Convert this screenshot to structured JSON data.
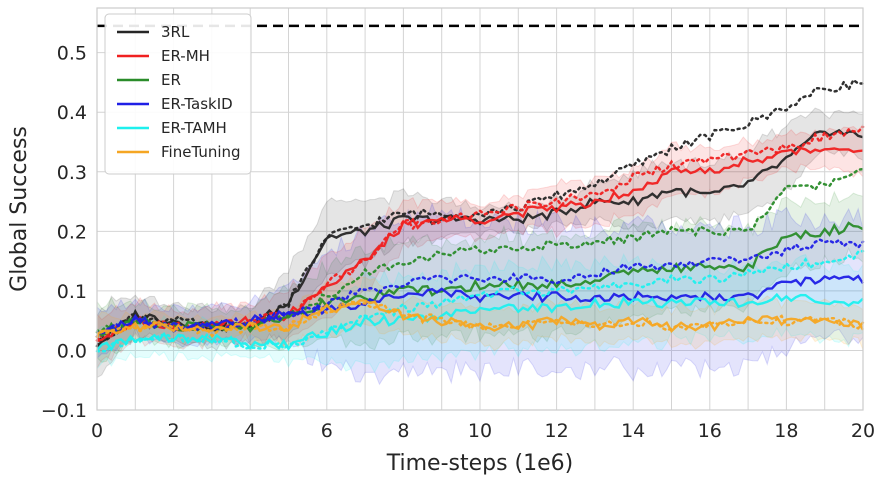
{
  "chart_data": {
    "type": "line",
    "xlabel": "Time-steps (1e6)",
    "ylabel": "Global Success",
    "xlim": [
      0,
      20
    ],
    "ylim": [
      -0.1,
      0.575
    ],
    "xticks": [
      "0",
      "2",
      "4",
      "6",
      "8",
      "10",
      "12",
      "14",
      "16",
      "18",
      "20"
    ],
    "yticks": [
      "−0.1",
      "0.0",
      "0.1",
      "0.2",
      "0.3",
      "0.4",
      "0.5"
    ],
    "grid": true,
    "legend_position": "top-left",
    "reference_line": {
      "y": 0.545,
      "style": "dashed",
      "color": "#000000"
    },
    "x": [
      0,
      1,
      2,
      3,
      4,
      5,
      6,
      7,
      8,
      9,
      10,
      11,
      12,
      13,
      14,
      15,
      16,
      17,
      18,
      19,
      20
    ],
    "series": [
      {
        "name": "3RL",
        "color": "#262626",
        "values": [
          0.01,
          0.06,
          0.05,
          0.04,
          0.04,
          0.08,
          0.19,
          0.2,
          0.22,
          0.22,
          0.22,
          0.22,
          0.23,
          0.25,
          0.25,
          0.27,
          0.26,
          0.28,
          0.32,
          0.37,
          0.36
        ],
        "dotted": [
          0.01,
          0.06,
          0.05,
          0.04,
          0.04,
          0.08,
          0.19,
          0.21,
          0.23,
          0.23,
          0.23,
          0.24,
          0.26,
          0.28,
          0.31,
          0.34,
          0.36,
          0.38,
          0.41,
          0.44,
          0.45
        ],
        "band": [
          0.06,
          0.03,
          0.03,
          0.03,
          0.03,
          0.06,
          0.06,
          0.05,
          0.04,
          0.03,
          0.02,
          0.02,
          0.02,
          0.03,
          0.05,
          0.05,
          0.05,
          0.05,
          0.06,
          0.03,
          0.04
        ]
      },
      {
        "name": "ER-MH",
        "color": "#f02020",
        "values": [
          0.02,
          0.05,
          0.04,
          0.04,
          0.05,
          0.06,
          0.11,
          0.15,
          0.21,
          0.22,
          0.22,
          0.23,
          0.24,
          0.25,
          0.27,
          0.3,
          0.3,
          0.32,
          0.33,
          0.34,
          0.34
        ],
        "dotted": [
          0.02,
          0.05,
          0.04,
          0.04,
          0.05,
          0.06,
          0.11,
          0.15,
          0.21,
          0.22,
          0.23,
          0.24,
          0.25,
          0.26,
          0.29,
          0.31,
          0.32,
          0.33,
          0.34,
          0.36,
          0.37
        ],
        "band": [
          0.04,
          0.03,
          0.03,
          0.03,
          0.03,
          0.04,
          0.05,
          0.05,
          0.04,
          0.03,
          0.03,
          0.03,
          0.04,
          0.04,
          0.04,
          0.04,
          0.04,
          0.03,
          0.03,
          0.03,
          0.04
        ]
      },
      {
        "name": "ER",
        "color": "#2a8c2a",
        "values": [
          0.03,
          0.05,
          0.04,
          0.04,
          0.04,
          0.06,
          0.08,
          0.09,
          0.1,
          0.1,
          0.11,
          0.11,
          0.11,
          0.12,
          0.13,
          0.14,
          0.14,
          0.14,
          0.19,
          0.2,
          0.21
        ],
        "dotted": [
          0.03,
          0.05,
          0.04,
          0.04,
          0.04,
          0.06,
          0.09,
          0.13,
          0.15,
          0.16,
          0.17,
          0.17,
          0.18,
          0.18,
          0.19,
          0.2,
          0.2,
          0.2,
          0.27,
          0.28,
          0.3
        ],
        "band": [
          0.05,
          0.03,
          0.03,
          0.03,
          0.03,
          0.05,
          0.06,
          0.08,
          0.08,
          0.08,
          0.08,
          0.08,
          0.08,
          0.08,
          0.08,
          0.07,
          0.07,
          0.06,
          0.06,
          0.05,
          0.05
        ]
      },
      {
        "name": "ER-TaskID",
        "color": "#1f1fe6",
        "values": [
          0.03,
          0.05,
          0.04,
          0.04,
          0.05,
          0.06,
          0.07,
          0.08,
          0.09,
          0.1,
          0.09,
          0.09,
          0.09,
          0.09,
          0.09,
          0.09,
          0.09,
          0.09,
          0.11,
          0.12,
          0.12
        ],
        "dotted": [
          0.03,
          0.05,
          0.04,
          0.04,
          0.05,
          0.06,
          0.08,
          0.1,
          0.11,
          0.12,
          0.12,
          0.12,
          0.12,
          0.13,
          0.14,
          0.14,
          0.15,
          0.15,
          0.17,
          0.18,
          0.18
        ],
        "band": [
          0.04,
          0.03,
          0.03,
          0.03,
          0.03,
          0.05,
          0.09,
          0.12,
          0.13,
          0.13,
          0.12,
          0.12,
          0.12,
          0.12,
          0.12,
          0.12,
          0.12,
          0.12,
          0.11,
          0.1,
          0.1
        ]
      },
      {
        "name": "ER-TAMH",
        "color": "#1ef0ee",
        "values": [
          0.0,
          0.02,
          0.02,
          0.02,
          0.01,
          0.01,
          0.03,
          0.05,
          0.05,
          0.06,
          0.07,
          0.07,
          0.07,
          0.08,
          0.08,
          0.08,
          0.08,
          0.08,
          0.09,
          0.08,
          0.08
        ],
        "dotted": [
          0.0,
          0.02,
          0.02,
          0.02,
          0.01,
          0.01,
          0.03,
          0.06,
          0.07,
          0.08,
          0.09,
          0.1,
          0.1,
          0.11,
          0.11,
          0.12,
          0.12,
          0.13,
          0.14,
          0.15,
          0.16
        ],
        "band": [
          0.03,
          0.03,
          0.03,
          0.03,
          0.02,
          0.03,
          0.05,
          0.07,
          0.07,
          0.07,
          0.07,
          0.07,
          0.07,
          0.07,
          0.07,
          0.06,
          0.06,
          0.06,
          0.06,
          0.06,
          0.06
        ]
      },
      {
        "name": "FineTuning",
        "color": "#f5a623",
        "values": [
          0.03,
          0.04,
          0.04,
          0.03,
          0.04,
          0.04,
          0.07,
          0.08,
          0.06,
          0.05,
          0.04,
          0.04,
          0.05,
          0.04,
          0.05,
          0.04,
          0.04,
          0.05,
          0.05,
          0.05,
          0.04
        ],
        "dotted": [
          0.03,
          0.04,
          0.04,
          0.03,
          0.04,
          0.04,
          0.07,
          0.08,
          0.06,
          0.05,
          0.04,
          0.04,
          0.05,
          0.04,
          0.05,
          0.04,
          0.04,
          0.05,
          0.05,
          0.05,
          0.04
        ],
        "band": [
          0.03,
          0.02,
          0.02,
          0.02,
          0.02,
          0.03,
          0.04,
          0.04,
          0.03,
          0.03,
          0.03,
          0.03,
          0.03,
          0.03,
          0.03,
          0.03,
          0.03,
          0.03,
          0.03,
          0.03,
          0.03
        ]
      }
    ]
  }
}
